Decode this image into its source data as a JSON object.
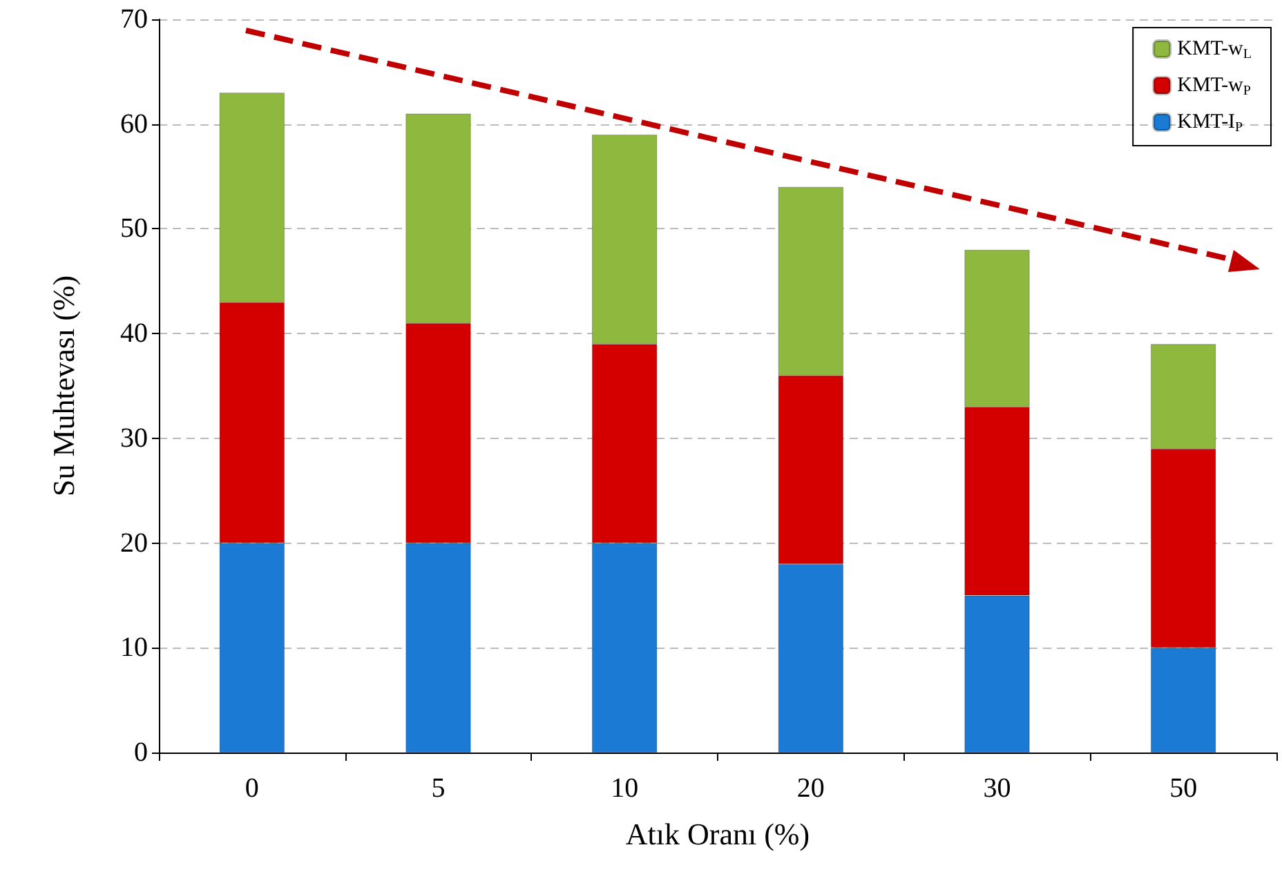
{
  "chart_data": {
    "type": "bar",
    "stacked": true,
    "xlabel": "Atık Oranı (%)",
    "ylabel": "Su Muhtevası (%)",
    "categories": [
      "0",
      "5",
      "10",
      "20",
      "30",
      "50"
    ],
    "series": [
      {
        "name": "KMT-I$_{P}$",
        "color": "#1a7ad4",
        "values": [
          20,
          20,
          20,
          18,
          15,
          10
        ]
      },
      {
        "name": "KMT-w$_{P}$",
        "color": "#d40000",
        "values": [
          23,
          21,
          19,
          18,
          18,
          19
        ]
      },
      {
        "name": "KMT-w$_{L}$",
        "color": "#8fb93e",
        "values": [
          20,
          20,
          20,
          18,
          15,
          10
        ]
      }
    ],
    "ylim": [
      0,
      70
    ],
    "yticks": [
      0,
      10,
      20,
      30,
      40,
      50,
      60,
      70
    ],
    "grid": "y",
    "legend": "top right"
  }
}
